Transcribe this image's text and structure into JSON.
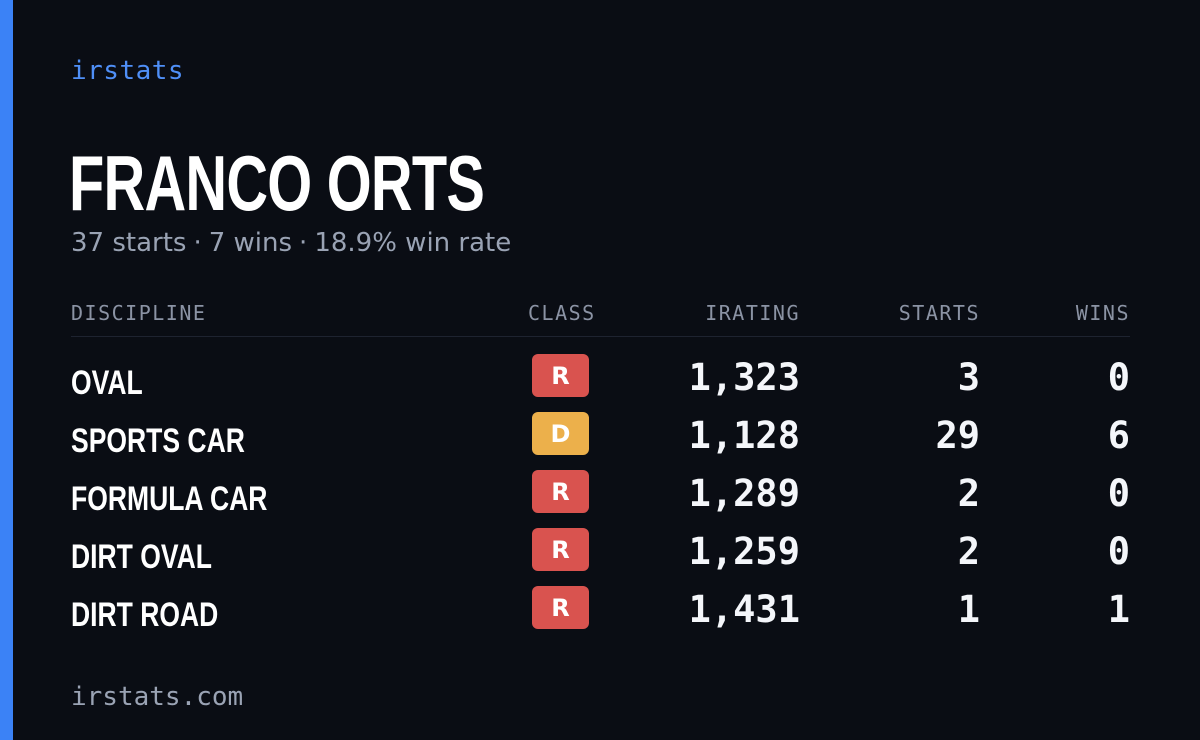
{
  "brand": "irstats",
  "driver": {
    "name": "FRANCO ORTS",
    "starts_text": "37 starts",
    "wins_text": "7 wins",
    "win_rate_text": "18.9% win rate",
    "separator": "·"
  },
  "table": {
    "headers": {
      "discipline": "DISCIPLINE",
      "class": "CLASS",
      "irating": "IRATING",
      "starts": "STARTS",
      "wins": "WINS"
    },
    "rows": [
      {
        "discipline": "OVAL",
        "class": "R",
        "class_color": "#d9534f",
        "irating": "1,323",
        "starts": "3",
        "wins": "0"
      },
      {
        "discipline": "SPORTS CAR",
        "class": "D",
        "class_color": "#ecb04b",
        "irating": "1,128",
        "starts": "29",
        "wins": "6"
      },
      {
        "discipline": "FORMULA CAR",
        "class": "R",
        "class_color": "#d9534f",
        "irating": "1,289",
        "starts": "2",
        "wins": "0"
      },
      {
        "discipline": "DIRT OVAL",
        "class": "R",
        "class_color": "#d9534f",
        "irating": "1,259",
        "starts": "2",
        "wins": "0"
      },
      {
        "discipline": "DIRT ROAD",
        "class": "R",
        "class_color": "#d9534f",
        "irating": "1,431",
        "starts": "1",
        "wins": "1"
      }
    ]
  },
  "footer": "irstats.com",
  "colors": {
    "accent": "#3b82f6",
    "background": "#0a0d14"
  }
}
